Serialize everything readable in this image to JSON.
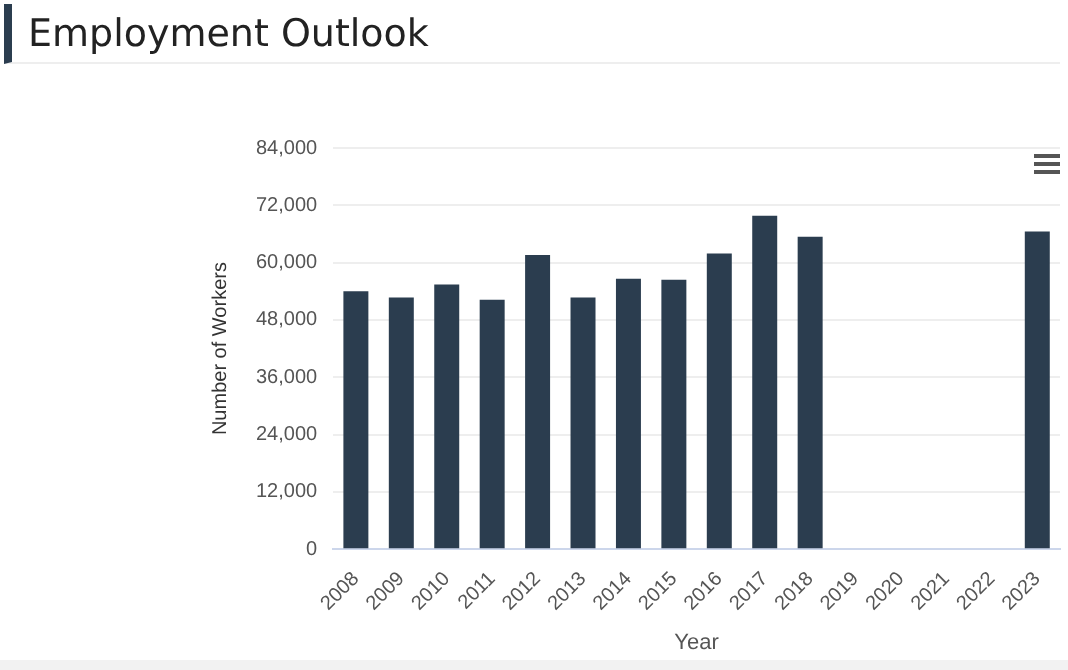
{
  "chart_data": {
    "type": "bar",
    "title": "Employment Outlook",
    "xlabel": "Year",
    "ylabel": "Number of Workers",
    "categories": [
      "2008",
      "2009",
      "2010",
      "2011",
      "2012",
      "2013",
      "2014",
      "2015",
      "2016",
      "2017",
      "2018",
      "2019",
      "2020",
      "2021",
      "2022",
      "2023"
    ],
    "values": [
      54000,
      52700,
      55400,
      52200,
      61600,
      52700,
      56600,
      56400,
      61900,
      69800,
      65400,
      null,
      null,
      null,
      null,
      66500
    ],
    "color": "#2b3d4f",
    "ylim": [
      0,
      84000
    ],
    "yticks": [
      {
        "value": 0,
        "label": "0"
      },
      {
        "value": 12000,
        "label": "12,000"
      },
      {
        "value": 24000,
        "label": "24,000"
      },
      {
        "value": 36000,
        "label": "36,000"
      },
      {
        "value": 48000,
        "label": "48,000"
      },
      {
        "value": 60000,
        "label": "60,000"
      },
      {
        "value": 72000,
        "label": "72,000"
      },
      {
        "value": 84000,
        "label": "84,000"
      }
    ],
    "grid": "y",
    "legend": false
  }
}
